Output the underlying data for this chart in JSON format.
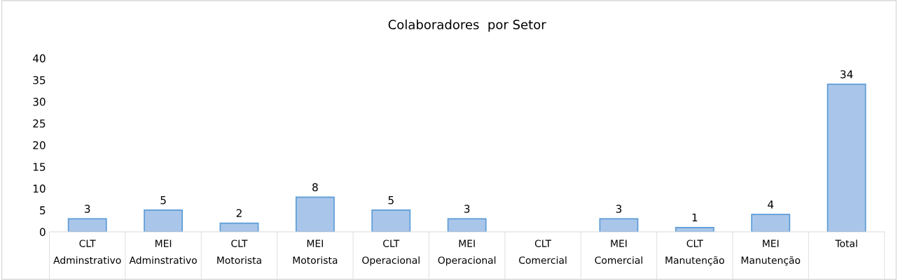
{
  "chart_data": {
    "type": "bar",
    "title": "Colaboradores  por Setor",
    "categories": [
      "CLT\nAdminstrativo",
      "MEI\nAdminstrativo",
      "CLT\nMotorista",
      "MEI\nMotorista",
      "CLT\nOperacional",
      "MEI\nOperacional",
      "CLT\nComercial",
      "MEI\nComercial",
      "CLT\nManutenção",
      "MEI\nManutenção",
      "Total"
    ],
    "values": [
      3,
      5,
      2,
      8,
      5,
      3,
      null,
      3,
      1,
      4,
      34
    ],
    "color": "#a9c6ea",
    "ylim": [
      0,
      40
    ],
    "yticks": [
      0,
      5,
      10,
      15,
      20,
      25,
      30,
      35,
      40
    ],
    "data_labels": true,
    "grid": false
  }
}
